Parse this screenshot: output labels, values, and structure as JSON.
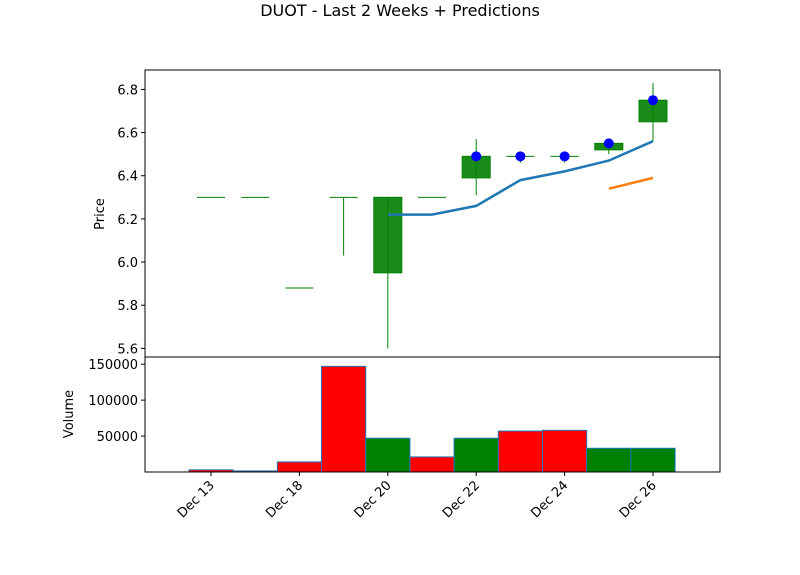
{
  "chart_data": {
    "type": "candlestick",
    "title": "DUOT - Last 2 Weeks + Predictions",
    "price_panel": {
      "ylabel": "Price",
      "ylim": [
        5.56,
        6.89
      ],
      "yticks": [
        "5.6",
        "5.8",
        "6.0",
        "6.2",
        "6.4",
        "6.6",
        "6.8"
      ],
      "candles": [
        {
          "open": 6.3,
          "high": 6.3,
          "low": 6.3,
          "close": 6.3
        },
        {
          "open": 6.3,
          "high": 6.3,
          "low": 6.3,
          "close": 6.3
        },
        {
          "open": 5.88,
          "high": 5.88,
          "low": 5.88,
          "close": 5.88
        },
        {
          "open": 6.3,
          "high": 6.3,
          "low": 6.03,
          "close": 6.3
        },
        {
          "open": 5.95,
          "high": 6.3,
          "low": 5.6,
          "close": 6.3
        },
        {
          "open": 6.3,
          "high": 6.3,
          "low": 6.3,
          "close": 6.3
        },
        {
          "open": 6.39,
          "high": 6.57,
          "low": 6.31,
          "close": 6.49
        },
        {
          "open": 6.49,
          "high": 6.51,
          "low": 6.46,
          "close": 6.49
        },
        {
          "open": 6.49,
          "high": 6.51,
          "low": 6.46,
          "close": 6.49
        },
        {
          "open": 6.52,
          "high": 6.56,
          "low": 6.5,
          "close": 6.55
        },
        {
          "open": 6.65,
          "high": 6.83,
          "low": 6.56,
          "close": 6.75
        }
      ],
      "markers": [
        {
          "i": 6,
          "y": 6.49
        },
        {
          "i": 7,
          "y": 6.49
        },
        {
          "i": 8,
          "y": 6.49
        },
        {
          "i": 9,
          "y": 6.55
        },
        {
          "i": 10,
          "y": 6.75
        }
      ],
      "lines": [
        {
          "color": "#1f77b4",
          "points": [
            [
              4,
              6.22
            ],
            [
              5,
              6.22
            ],
            [
              6,
              6.26
            ],
            [
              7,
              6.38
            ],
            [
              8,
              6.42
            ],
            [
              9,
              6.47
            ],
            [
              10,
              6.56
            ]
          ]
        },
        {
          "color": "#ff7f0e",
          "points": [
            [
              9,
              6.34
            ],
            [
              10,
              6.39
            ]
          ]
        }
      ]
    },
    "volume_panel": {
      "ylabel": "Volume",
      "ylim": [
        0,
        160000
      ],
      "yticks": [
        "50000",
        "100000",
        "150000"
      ],
      "bars": [
        {
          "value": 3000,
          "color": "red"
        },
        {
          "value": 1500,
          "color": "red"
        },
        {
          "value": 14000,
          "color": "red"
        },
        {
          "value": 147000,
          "color": "red"
        },
        {
          "value": 47000,
          "color": "green"
        },
        {
          "value": 21000,
          "color": "red"
        },
        {
          "value": 47000,
          "color": "green"
        },
        {
          "value": 57000,
          "color": "red"
        },
        {
          "value": 58000,
          "color": "red"
        },
        {
          "value": 33000,
          "color": "green"
        },
        {
          "value": 33000,
          "color": "green"
        }
      ]
    },
    "x_tick_labels": [
      {
        "i": 0,
        "label": "Dec 13"
      },
      {
        "i": 2,
        "label": "Dec 18"
      },
      {
        "i": 4,
        "label": "Dec 20"
      },
      {
        "i": 6,
        "label": "Dec 22"
      },
      {
        "i": 8,
        "label": "Dec 24"
      },
      {
        "i": 10,
        "label": "Dec 26"
      }
    ],
    "colors": {
      "up": "#008000",
      "down": "#ff0000",
      "marker": "#0000ff",
      "prediction_main": "#1f77b4",
      "prediction_alt": "#ff7f0e"
    }
  }
}
